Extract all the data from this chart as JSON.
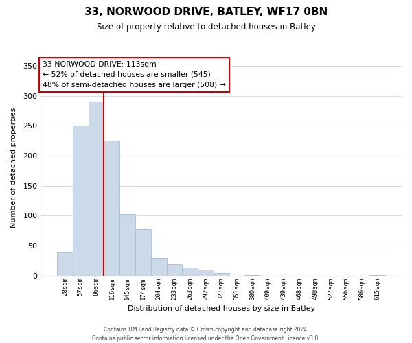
{
  "title": "33, NORWOOD DRIVE, BATLEY, WF17 0BN",
  "subtitle": "Size of property relative to detached houses in Batley",
  "xlabel": "Distribution of detached houses by size in Batley",
  "ylabel": "Number of detached properties",
  "bar_labels": [
    "28sqm",
    "57sqm",
    "86sqm",
    "116sqm",
    "145sqm",
    "174sqm",
    "204sqm",
    "233sqm",
    "263sqm",
    "292sqm",
    "321sqm",
    "351sqm",
    "380sqm",
    "409sqm",
    "439sqm",
    "468sqm",
    "498sqm",
    "527sqm",
    "556sqm",
    "586sqm",
    "615sqm"
  ],
  "bar_values": [
    39,
    250,
    291,
    225,
    103,
    78,
    29,
    19,
    13,
    10,
    4,
    0,
    1,
    0,
    0,
    0,
    0,
    0,
    0,
    0,
    1
  ],
  "bar_color": "#ccd9e8",
  "bar_edge_color": "#a8bdd0",
  "vline_color": "#cc0000",
  "vline_x_index": 3,
  "ylim": [
    0,
    360
  ],
  "yticks": [
    0,
    50,
    100,
    150,
    200,
    250,
    300,
    350
  ],
  "annotation_title": "33 NORWOOD DRIVE: 113sqm",
  "annotation_line1": "← 52% of detached houses are smaller (545)",
  "annotation_line2": "48% of semi-detached houses are larger (508) →",
  "footer_line1": "Contains HM Land Registry data © Crown copyright and database right 2024.",
  "footer_line2": "Contains public sector information licensed under the Open Government Licence v3.0.",
  "background_color": "#ffffff",
  "grid_color": "#d4dde6"
}
